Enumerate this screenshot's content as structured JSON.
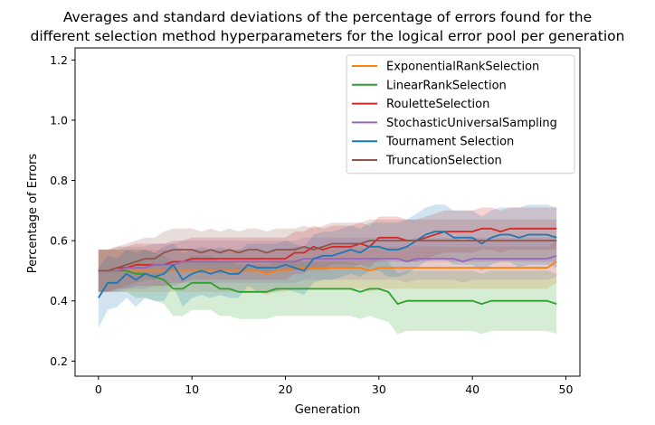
{
  "chart_data": {
    "type": "line",
    "title_lines": [
      "Averages and standard deviations of the percentage of errors found for the",
      "different selection method hyperparameters for the logical error pool per generation"
    ],
    "xlabel": "Generation",
    "ylabel": "Percentage of Errors",
    "xlim": [
      -2.5,
      51.5
    ],
    "ylim": [
      0.15,
      1.24
    ],
    "xticks": [
      0,
      10,
      20,
      30,
      40,
      50
    ],
    "yticks": [
      0.2,
      0.4,
      0.6,
      0.8,
      1.0,
      1.2
    ],
    "xtick_labels": [
      "0",
      "10",
      "20",
      "30",
      "40",
      "50"
    ],
    "ytick_labels": [
      "0.2",
      "0.4",
      "0.6",
      "0.8",
      "1.0",
      "1.2"
    ],
    "legend_location": "top-right",
    "x": [
      0,
      1,
      2,
      3,
      4,
      5,
      6,
      7,
      8,
      9,
      10,
      11,
      12,
      13,
      14,
      15,
      16,
      17,
      18,
      19,
      20,
      21,
      22,
      23,
      24,
      25,
      26,
      27,
      28,
      29,
      30,
      31,
      32,
      33,
      34,
      35,
      36,
      37,
      38,
      39,
      40,
      41,
      42,
      43,
      44,
      45,
      46,
      47,
      48,
      49
    ],
    "series": [
      {
        "name": "ExponentialRankSelection",
        "color": "#ff7f0e",
        "values": [
          0.5,
          0.5,
          0.5,
          0.5,
          0.5,
          0.5,
          0.5,
          0.5,
          0.5,
          0.5,
          0.5,
          0.5,
          0.5,
          0.5,
          0.5,
          0.5,
          0.5,
          0.5,
          0.49,
          0.5,
          0.5,
          0.51,
          0.51,
          0.51,
          0.51,
          0.51,
          0.51,
          0.51,
          0.51,
          0.5,
          0.51,
          0.51,
          0.51,
          0.51,
          0.51,
          0.51,
          0.51,
          0.51,
          0.51,
          0.51,
          0.51,
          0.51,
          0.51,
          0.51,
          0.51,
          0.51,
          0.51,
          0.51,
          0.51,
          0.53
        ],
        "std": [
          0.07,
          0.07,
          0.07,
          0.07,
          0.07,
          0.07,
          0.07,
          0.07,
          0.07,
          0.07,
          0.07,
          0.07,
          0.07,
          0.07,
          0.07,
          0.07,
          0.07,
          0.07,
          0.07,
          0.07,
          0.07,
          0.07,
          0.07,
          0.07,
          0.07,
          0.07,
          0.07,
          0.07,
          0.07,
          0.07,
          0.07,
          0.07,
          0.07,
          0.07,
          0.07,
          0.07,
          0.07,
          0.07,
          0.07,
          0.07,
          0.07,
          0.07,
          0.07,
          0.07,
          0.07,
          0.07,
          0.07,
          0.07,
          0.07,
          0.07
        ]
      },
      {
        "name": "LinearRankSelection",
        "color": "#2ca02c",
        "values": [
          0.5,
          0.5,
          0.5,
          0.5,
          0.49,
          0.49,
          0.48,
          0.47,
          0.44,
          0.44,
          0.46,
          0.46,
          0.46,
          0.44,
          0.44,
          0.43,
          0.43,
          0.43,
          0.43,
          0.44,
          0.44,
          0.44,
          0.44,
          0.44,
          0.44,
          0.44,
          0.44,
          0.44,
          0.43,
          0.44,
          0.44,
          0.43,
          0.39,
          0.4,
          0.4,
          0.4,
          0.4,
          0.4,
          0.4,
          0.4,
          0.4,
          0.39,
          0.4,
          0.4,
          0.4,
          0.4,
          0.4,
          0.4,
          0.4,
          0.39
        ],
        "std": [
          0.07,
          0.07,
          0.07,
          0.07,
          0.08,
          0.08,
          0.08,
          0.08,
          0.09,
          0.09,
          0.09,
          0.09,
          0.09,
          0.09,
          0.09,
          0.09,
          0.09,
          0.09,
          0.09,
          0.09,
          0.09,
          0.09,
          0.09,
          0.09,
          0.09,
          0.09,
          0.09,
          0.09,
          0.09,
          0.09,
          0.1,
          0.1,
          0.1,
          0.1,
          0.1,
          0.1,
          0.1,
          0.1,
          0.1,
          0.1,
          0.1,
          0.1,
          0.1,
          0.1,
          0.1,
          0.1,
          0.1,
          0.1,
          0.1,
          0.1
        ]
      },
      {
        "name": "RouletteSelection",
        "color": "#d62728",
        "values": [
          0.5,
          0.5,
          0.51,
          0.51,
          0.52,
          0.52,
          0.52,
          0.52,
          0.53,
          0.53,
          0.54,
          0.54,
          0.54,
          0.54,
          0.54,
          0.54,
          0.54,
          0.54,
          0.54,
          0.54,
          0.54,
          0.56,
          0.56,
          0.58,
          0.57,
          0.58,
          0.58,
          0.58,
          0.59,
          0.58,
          0.61,
          0.61,
          0.61,
          0.6,
          0.6,
          0.61,
          0.62,
          0.63,
          0.63,
          0.63,
          0.63,
          0.64,
          0.64,
          0.63,
          0.64,
          0.64,
          0.64,
          0.64,
          0.64,
          0.64
        ],
        "std": [
          0.07,
          0.07,
          0.07,
          0.07,
          0.07,
          0.07,
          0.07,
          0.07,
          0.07,
          0.07,
          0.07,
          0.07,
          0.07,
          0.07,
          0.07,
          0.07,
          0.07,
          0.07,
          0.07,
          0.07,
          0.07,
          0.07,
          0.07,
          0.07,
          0.07,
          0.07,
          0.07,
          0.07,
          0.07,
          0.07,
          0.07,
          0.07,
          0.07,
          0.07,
          0.07,
          0.07,
          0.07,
          0.07,
          0.07,
          0.07,
          0.07,
          0.07,
          0.07,
          0.07,
          0.07,
          0.07,
          0.07,
          0.07,
          0.07,
          0.07
        ]
      },
      {
        "name": "StochasticUniversalSampling",
        "color": "#9467bd",
        "values": [
          0.5,
          0.5,
          0.5,
          0.51,
          0.51,
          0.51,
          0.52,
          0.52,
          0.52,
          0.53,
          0.53,
          0.53,
          0.53,
          0.53,
          0.53,
          0.53,
          0.53,
          0.53,
          0.53,
          0.53,
          0.53,
          0.53,
          0.54,
          0.54,
          0.54,
          0.54,
          0.54,
          0.54,
          0.54,
          0.54,
          0.54,
          0.54,
          0.54,
          0.53,
          0.54,
          0.54,
          0.54,
          0.54,
          0.54,
          0.53,
          0.54,
          0.54,
          0.54,
          0.54,
          0.54,
          0.54,
          0.54,
          0.54,
          0.54,
          0.55
        ],
        "std": [
          0.07,
          0.07,
          0.07,
          0.07,
          0.07,
          0.07,
          0.07,
          0.07,
          0.07,
          0.07,
          0.07,
          0.07,
          0.07,
          0.07,
          0.07,
          0.07,
          0.07,
          0.07,
          0.07,
          0.07,
          0.07,
          0.07,
          0.07,
          0.07,
          0.07,
          0.07,
          0.07,
          0.07,
          0.07,
          0.07,
          0.07,
          0.07,
          0.07,
          0.07,
          0.07,
          0.07,
          0.07,
          0.07,
          0.07,
          0.07,
          0.07,
          0.07,
          0.07,
          0.07,
          0.07,
          0.07,
          0.07,
          0.07,
          0.07,
          0.07
        ]
      },
      {
        "name": "Tournament Selection",
        "color": "#1f77b4",
        "values": [
          0.41,
          0.46,
          0.46,
          0.49,
          0.47,
          0.49,
          0.48,
          0.49,
          0.52,
          0.47,
          0.49,
          0.5,
          0.49,
          0.5,
          0.49,
          0.49,
          0.52,
          0.51,
          0.51,
          0.51,
          0.52,
          0.51,
          0.5,
          0.54,
          0.55,
          0.55,
          0.56,
          0.57,
          0.56,
          0.58,
          0.58,
          0.57,
          0.57,
          0.58,
          0.6,
          0.62,
          0.63,
          0.63,
          0.61,
          0.61,
          0.61,
          0.59,
          0.61,
          0.62,
          0.62,
          0.61,
          0.62,
          0.62,
          0.62,
          0.61
        ],
        "std": [
          0.1,
          0.09,
          0.08,
          0.08,
          0.09,
          0.08,
          0.08,
          0.09,
          0.07,
          0.09,
          0.08,
          0.08,
          0.08,
          0.08,
          0.08,
          0.08,
          0.07,
          0.08,
          0.08,
          0.08,
          0.08,
          0.08,
          0.08,
          0.08,
          0.08,
          0.08,
          0.08,
          0.08,
          0.08,
          0.08,
          0.08,
          0.09,
          0.09,
          0.09,
          0.09,
          0.09,
          0.09,
          0.09,
          0.09,
          0.09,
          0.09,
          0.09,
          0.09,
          0.09,
          0.09,
          0.1,
          0.1,
          0.1,
          0.1,
          0.1
        ]
      },
      {
        "name": "TruncationSelection",
        "color": "#8c564b",
        "values": [
          0.5,
          0.5,
          0.51,
          0.52,
          0.53,
          0.54,
          0.54,
          0.56,
          0.57,
          0.57,
          0.57,
          0.56,
          0.57,
          0.56,
          0.57,
          0.56,
          0.57,
          0.57,
          0.56,
          0.57,
          0.57,
          0.57,
          0.58,
          0.57,
          0.58,
          0.59,
          0.59,
          0.59,
          0.59,
          0.6,
          0.6,
          0.6,
          0.6,
          0.6,
          0.6,
          0.6,
          0.6,
          0.6,
          0.6,
          0.6,
          0.6,
          0.6,
          0.6,
          0.6,
          0.6,
          0.6,
          0.6,
          0.6,
          0.6,
          0.6
        ],
        "std": [
          0.07,
          0.07,
          0.07,
          0.07,
          0.07,
          0.07,
          0.07,
          0.07,
          0.07,
          0.07,
          0.07,
          0.07,
          0.07,
          0.07,
          0.07,
          0.07,
          0.07,
          0.07,
          0.07,
          0.07,
          0.07,
          0.07,
          0.07,
          0.07,
          0.07,
          0.07,
          0.07,
          0.07,
          0.07,
          0.07,
          0.07,
          0.07,
          0.07,
          0.07,
          0.07,
          0.07,
          0.07,
          0.07,
          0.07,
          0.07,
          0.07,
          0.07,
          0.07,
          0.07,
          0.07,
          0.07,
          0.07,
          0.07,
          0.07,
          0.07
        ]
      }
    ]
  }
}
